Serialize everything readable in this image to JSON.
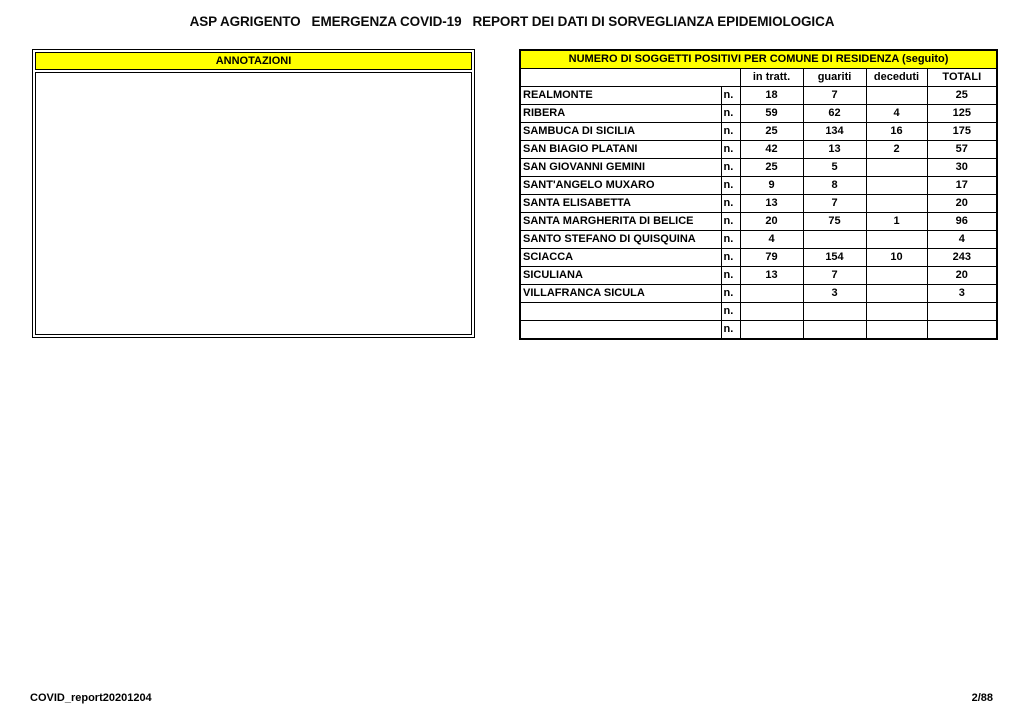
{
  "page": {
    "title": "ASP AGRIGENTO   EMERGENZA COVID-19   REPORT DEI DATI DI SORVEGLIANZA EPIDEMIOLOGICA",
    "footer_left": "COVID_report20201204",
    "footer_right": "2/88"
  },
  "annotations_box": {
    "header_label": "ANNOTAZIONI",
    "body_text": ""
  },
  "positives_table": {
    "title": "NUMERO DI SOGGETTI POSITIVI PER COMUNE DI RESIDENZA (seguito)",
    "row_unit_label": "n.",
    "columns": [
      "in tratt.",
      "guariti",
      "deceduti",
      "TOTALI"
    ],
    "rows": [
      {
        "comune": "REALMONTE",
        "in_tratt": "18",
        "guariti": "7",
        "deceduti": "",
        "totali": "25"
      },
      {
        "comune": "RIBERA",
        "in_tratt": "59",
        "guariti": "62",
        "deceduti": "4",
        "totali": "125"
      },
      {
        "comune": "SAMBUCA DI SICILIA",
        "in_tratt": "25",
        "guariti": "134",
        "deceduti": "16",
        "totali": "175"
      },
      {
        "comune": "SAN BIAGIO PLATANI",
        "in_tratt": "42",
        "guariti": "13",
        "deceduti": "2",
        "totali": "57"
      },
      {
        "comune": "SAN GIOVANNI GEMINI",
        "in_tratt": "25",
        "guariti": "5",
        "deceduti": "",
        "totali": "30"
      },
      {
        "comune": "SANT'ANGELO MUXARO",
        "in_tratt": "9",
        "guariti": "8",
        "deceduti": "",
        "totali": "17"
      },
      {
        "comune": "SANTA ELISABETTA",
        "in_tratt": "13",
        "guariti": "7",
        "deceduti": "",
        "totali": "20"
      },
      {
        "comune": "SANTA MARGHERITA DI BELICE",
        "in_tratt": "20",
        "guariti": "75",
        "deceduti": "1",
        "totali": "96"
      },
      {
        "comune": "SANTO STEFANO DI QUISQUINA",
        "in_tratt": "4",
        "guariti": "",
        "deceduti": "",
        "totali": "4"
      },
      {
        "comune": "SCIACCA",
        "in_tratt": "79",
        "guariti": "154",
        "deceduti": "10",
        "totali": "243"
      },
      {
        "comune": "SICULIANA",
        "in_tratt": "13",
        "guariti": "7",
        "deceduti": "",
        "totali": "20"
      },
      {
        "comune": "VILLAFRANCA SICULA",
        "in_tratt": "",
        "guariti": "3",
        "deceduti": "",
        "totali": "3"
      },
      {
        "comune": "",
        "in_tratt": "",
        "guariti": "",
        "deceduti": "",
        "totali": ""
      },
      {
        "comune": "",
        "in_tratt": "",
        "guariti": "",
        "deceduti": "",
        "totali": ""
      }
    ]
  },
  "colors": {
    "highlight_yellow": "#FFFF00",
    "table_title_text": "#B00000",
    "border_black": "#000000"
  }
}
